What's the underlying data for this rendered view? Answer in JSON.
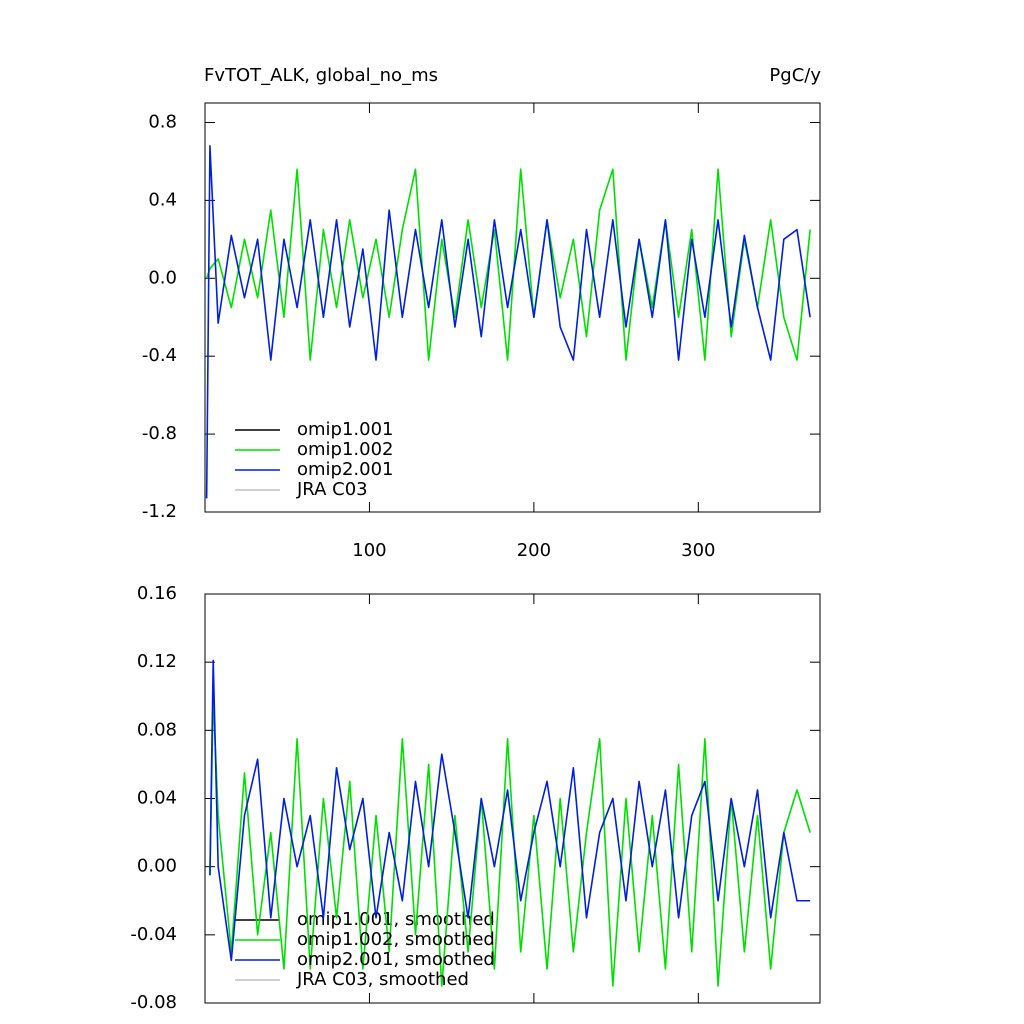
{
  "chart_data": [
    {
      "type": "line",
      "title": "FvTOT_ALK, global_no_ms",
      "units": "PgC/y",
      "x": [
        1,
        3,
        8,
        16,
        24,
        32,
        40,
        48,
        56,
        64,
        72,
        80,
        88,
        96,
        104,
        112,
        120,
        128,
        136,
        144,
        152,
        160,
        168,
        176,
        184,
        192,
        200,
        208,
        216,
        224,
        232,
        240,
        248,
        256,
        264,
        272,
        280,
        288,
        296,
        304,
        312,
        320,
        328,
        336,
        344,
        352,
        360,
        368
      ],
      "xlim": [
        0,
        374
      ],
      "xticks": [
        100,
        200,
        300
      ],
      "ylim": [
        -1.2,
        0.9
      ],
      "yticks": [
        -1.2,
        -0.8,
        -0.4,
        {
          "value": 0,
          "label": "0.0"
        },
        0.4,
        0.8
      ],
      "series": [
        {
          "name": "omip1.001",
          "color": "#000000",
          "values": [
            null,
            null,
            null,
            null,
            null,
            null,
            null,
            null,
            null,
            null,
            null,
            null,
            null,
            null,
            null,
            null,
            null,
            null,
            null,
            null,
            null,
            null,
            null,
            null,
            null,
            null,
            null,
            null,
            null,
            null,
            null,
            null,
            null,
            null,
            null,
            null,
            null,
            null,
            null,
            null,
            null,
            null,
            null,
            null,
            null,
            null,
            null,
            null
          ]
        },
        {
          "name": "omip1.002",
          "color": "#00e000",
          "values": [
            0.0,
            0.05,
            0.1,
            -0.15,
            0.2,
            -0.1,
            0.35,
            -0.2,
            0.56,
            -0.42,
            0.25,
            -0.15,
            0.3,
            -0.1,
            0.2,
            -0.2,
            0.25,
            0.56,
            -0.42,
            0.2,
            -0.2,
            0.3,
            -0.15,
            0.25,
            -0.42,
            0.56,
            -0.2,
            0.3,
            -0.1,
            0.2,
            -0.3,
            0.35,
            0.56,
            -0.42,
            0.2,
            -0.15,
            0.3,
            -0.2,
            0.25,
            -0.42,
            0.56,
            -0.3,
            0.2,
            -0.15,
            0.3,
            -0.2,
            -0.42,
            0.25
          ]
        },
        {
          "name": "omip2.001",
          "color": "#0020e0",
          "values": [
            -1.13,
            0.68,
            -0.23,
            0.22,
            -0.1,
            0.2,
            -0.42,
            0.2,
            -0.15,
            0.3,
            -0.2,
            0.3,
            -0.25,
            0.15,
            -0.42,
            0.35,
            -0.2,
            0.25,
            -0.15,
            0.3,
            -0.25,
            0.2,
            -0.3,
            0.3,
            -0.15,
            0.25,
            -0.2,
            0.3,
            -0.25,
            -0.42,
            0.25,
            -0.2,
            0.3,
            -0.25,
            0.2,
            -0.2,
            0.3,
            -0.42,
            0.2,
            -0.2,
            0.3,
            -0.25,
            0.22,
            -0.15,
            -0.42,
            0.2,
            0.25,
            -0.2
          ]
        },
        {
          "name": "JRA C03",
          "color": "#c0c0c0",
          "values": [
            null,
            null,
            null,
            null,
            null,
            null,
            null,
            null,
            null,
            null,
            null,
            null,
            null,
            null,
            null,
            null,
            null,
            null,
            null,
            null,
            null,
            null,
            null,
            null,
            null,
            null,
            null,
            null,
            null,
            null,
            null,
            null,
            null,
            null,
            null,
            null,
            null,
            null,
            null,
            null,
            null,
            null,
            null,
            null,
            null,
            null,
            null,
            null
          ]
        }
      ]
    },
    {
      "type": "line",
      "x": [
        3,
        5,
        8,
        16,
        24,
        32,
        40,
        48,
        56,
        64,
        72,
        80,
        88,
        96,
        104,
        112,
        120,
        128,
        136,
        144,
        152,
        160,
        168,
        176,
        184,
        192,
        200,
        208,
        216,
        224,
        232,
        240,
        248,
        256,
        264,
        272,
        280,
        288,
        296,
        304,
        312,
        320,
        328,
        336,
        344,
        352,
        360,
        368
      ],
      "xlim": [
        0,
        374
      ],
      "ylim": [
        -0.08,
        0.16
      ],
      "yticks": [
        -0.08,
        -0.04,
        {
          "value": 0,
          "label": "0.00"
        },
        0.04,
        0.08,
        0.12,
        0.16
      ],
      "series": [
        {
          "name": "omip1.001, smoothed",
          "color": "#000000",
          "values": [
            null,
            null,
            null,
            null,
            null,
            null,
            null,
            null,
            null,
            null,
            null,
            null,
            null,
            null,
            null,
            null,
            null,
            null,
            null,
            null,
            null,
            null,
            null,
            null,
            null,
            null,
            null,
            null,
            null,
            null,
            null,
            null,
            null,
            null,
            null,
            null,
            null,
            null,
            null,
            null,
            null,
            null,
            null,
            null,
            null,
            null,
            null,
            null
          ]
        },
        {
          "name": "omip1.002, smoothed",
          "color": "#00e000",
          "values": [
            -0.005,
            0.1,
            0.03,
            -0.05,
            0.055,
            -0.04,
            0.02,
            -0.06,
            0.075,
            -0.06,
            0.04,
            -0.03,
            0.05,
            -0.06,
            0.03,
            -0.05,
            0.075,
            -0.04,
            0.06,
            -0.07,
            0.03,
            -0.05,
            0.04,
            -0.06,
            0.075,
            -0.05,
            0.03,
            -0.06,
            0.04,
            -0.05,
            0.02,
            0.075,
            -0.07,
            0.04,
            -0.05,
            0.03,
            -0.06,
            0.06,
            -0.05,
            0.075,
            -0.07,
            0.04,
            -0.05,
            0.03,
            -0.06,
            0.02,
            0.045,
            0.02
          ]
        },
        {
          "name": "omip2.001, smoothed",
          "color": "#0020e0",
          "values": [
            -0.005,
            0.121,
            0.0,
            -0.055,
            0.03,
            0.063,
            -0.03,
            0.04,
            0.0,
            0.03,
            -0.03,
            0.058,
            0.01,
            0.04,
            -0.03,
            0.02,
            -0.02,
            0.05,
            0.0,
            0.066,
            0.02,
            -0.03,
            0.04,
            0.0,
            0.045,
            -0.02,
            0.02,
            0.05,
            0.0,
            0.058,
            -0.03,
            0.02,
            0.04,
            -0.02,
            0.05,
            0.0,
            0.045,
            -0.03,
            0.03,
            0.05,
            -0.02,
            0.04,
            0.0,
            0.045,
            -0.03,
            0.02,
            -0.02,
            -0.02
          ]
        },
        {
          "name": "JRA C03, smoothed",
          "color": "#c0c0c0",
          "values": [
            null,
            null,
            null,
            null,
            null,
            null,
            null,
            null,
            null,
            null,
            null,
            null,
            null,
            null,
            null,
            null,
            null,
            null,
            null,
            null,
            null,
            null,
            null,
            null,
            null,
            null,
            null,
            null,
            null,
            null,
            null,
            null,
            null,
            null,
            null,
            null,
            null,
            null,
            null,
            null,
            null,
            null,
            null,
            null,
            null,
            null,
            null,
            null
          ]
        }
      ]
    }
  ]
}
